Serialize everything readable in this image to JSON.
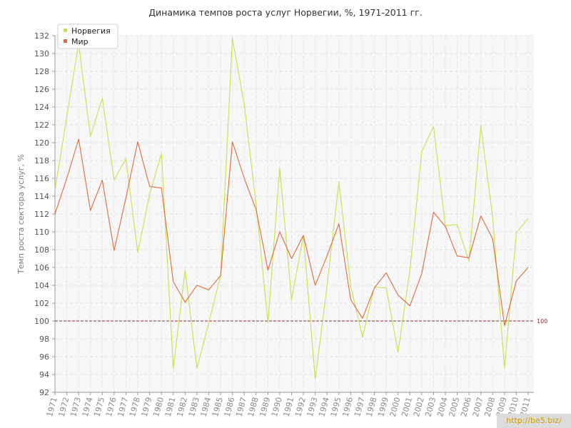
{
  "chart_data": {
    "type": "line",
    "title": "Динамика темпов роста услуг Норвегии, %, 1971-2011 гг.",
    "xlabel": "",
    "ylabel": "Темп роста сектора услуг, %",
    "ylim": [
      92,
      132
    ],
    "y_ticks": [
      92,
      94,
      96,
      98,
      100,
      102,
      104,
      106,
      108,
      110,
      112,
      114,
      116,
      118,
      120,
      122,
      124,
      126,
      128,
      130,
      132
    ],
    "grid": true,
    "legend_position": "top-left",
    "x": [
      "1971",
      "1972",
      "1973",
      "1974",
      "1975",
      "1976",
      "1977",
      "1978",
      "1979",
      "1980",
      "1981",
      "1982",
      "1983",
      "1984",
      "1985",
      "1986",
      "1987",
      "1988",
      "1989",
      "1990",
      "1991",
      "1992",
      "1993",
      "1994",
      "1995",
      "1996",
      "1997",
      "1998",
      "1999",
      "2000",
      "2001",
      "2002",
      "2003",
      "2004",
      "2005",
      "2006",
      "2007",
      "2008",
      "2009",
      "2010",
      "2011"
    ],
    "series": [
      {
        "name": "Норвегия",
        "color": "#c8e04e",
        "values": [
          114.7,
          122.9,
          131.1,
          120.7,
          125.0,
          115.8,
          118.2,
          107.7,
          114.2,
          118.8,
          94.7,
          105.7,
          94.7,
          99.8,
          105.1,
          131.7,
          124.3,
          113.1,
          99.8,
          117.2,
          102.4,
          109.6,
          93.5,
          103.9,
          115.6,
          103.9,
          98.2,
          103.8,
          103.7,
          96.5,
          105.7,
          119.0,
          121.8,
          110.7,
          110.8,
          106.7,
          121.9,
          111.6,
          94.7,
          109.9,
          111.5
        ]
      },
      {
        "name": "Мир",
        "color": "#e06a3c",
        "values": [
          112.0,
          116.0,
          120.4,
          112.4,
          115.8,
          107.9,
          113.8,
          120.1,
          115.1,
          114.9,
          104.4,
          102.1,
          104.0,
          103.5,
          105.1,
          120.1,
          116.0,
          112.5,
          105.7,
          110.0,
          107.0,
          109.6,
          104.0,
          107.3,
          110.9,
          102.4,
          100.3,
          103.7,
          105.4,
          102.9,
          101.7,
          105.3,
          112.2,
          110.6,
          107.3,
          107.1,
          111.8,
          109.2,
          99.5,
          104.5,
          106.0
        ]
      }
    ],
    "reference_line": {
      "value": 100,
      "label": "100",
      "color": "#8b2a3a"
    }
  },
  "watermark": {
    "text": "http://be5.biz/"
  }
}
